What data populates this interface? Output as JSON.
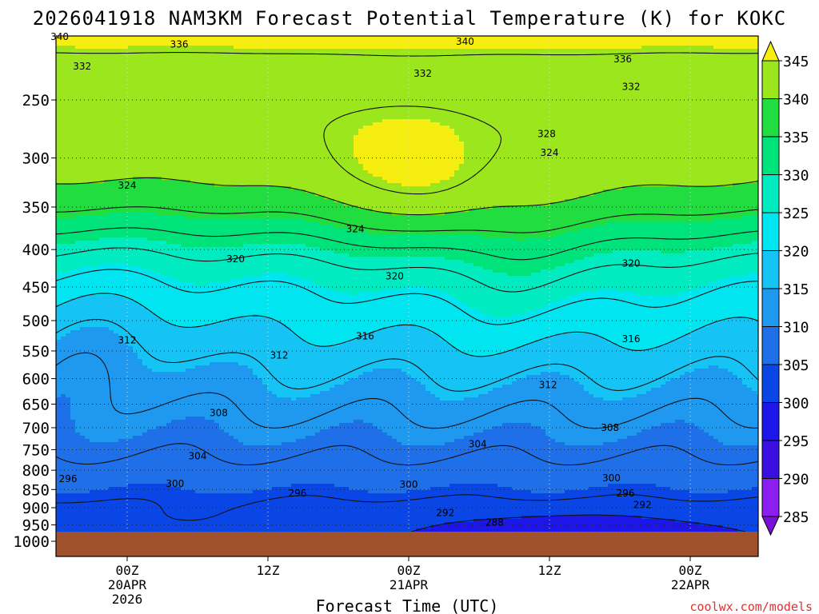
{
  "chart_data": {
    "type": "contour",
    "title": "2026041918 NAM3KM Forecast Potential Temperature (K) for KOKC",
    "xlabel": "Forecast Time (UTC)",
    "credit": "coolwx.com/models",
    "y_axis": {
      "unit": "hPa",
      "scale": "log-pressure",
      "range": [
        1000,
        200
      ],
      "ticks": [
        "250",
        "300",
        "350",
        "400",
        "450",
        "500",
        "550",
        "600",
        "650",
        "700",
        "750",
        "800",
        "850",
        "900",
        "950",
        "1000"
      ]
    },
    "x_axis": {
      "unit": "forecast hour",
      "range": [
        -6,
        44
      ],
      "ticks": [
        {
          "hour": 0,
          "lines": [
            "00Z",
            "20APR",
            "2026"
          ]
        },
        {
          "hour": 10,
          "lines": [
            "12Z"
          ]
        },
        {
          "hour": 20,
          "lines": [
            "00Z",
            "21APR"
          ]
        },
        {
          "hour": 30,
          "lines": [
            "12Z"
          ]
        },
        {
          "hour": 40,
          "lines": [
            "00Z",
            "22APR"
          ]
        }
      ]
    },
    "colorbar": {
      "labels": [
        "345",
        "340",
        "335",
        "330",
        "325",
        "320",
        "315",
        "310",
        "305",
        "300",
        "295",
        "290",
        "285"
      ],
      "bands": [
        {
          "lo": 280,
          "hi": 285,
          "color": "#7a10d8"
        },
        {
          "lo": 285,
          "hi": 290,
          "color": "#8c1ef0"
        },
        {
          "lo": 290,
          "hi": 295,
          "color": "#3a0fe0"
        },
        {
          "lo": 295,
          "hi": 300,
          "color": "#1c16e8"
        },
        {
          "lo": 300,
          "hi": 305,
          "color": "#0a46e6"
        },
        {
          "lo": 305,
          "hi": 310,
          "color": "#1f6fe8"
        },
        {
          "lo": 310,
          "hi": 315,
          "color": "#1f98f0"
        },
        {
          "lo": 315,
          "hi": 320,
          "color": "#16c3f5"
        },
        {
          "lo": 320,
          "hi": 325,
          "color": "#00e5f0"
        },
        {
          "lo": 325,
          "hi": 330,
          "color": "#00ecc0"
        },
        {
          "lo": 330,
          "hi": 335,
          "color": "#00e37a"
        },
        {
          "lo": 335,
          "hi": 340,
          "color": "#22dd40"
        },
        {
          "lo": 340,
          "hi": 345,
          "color": "#9ce61e"
        },
        {
          "lo": 345,
          "hi": 350,
          "color": "#f5ee10"
        }
      ]
    },
    "surface_color": "#a0522d",
    "contour_interval_K": 4,
    "contour_labels": [
      {
        "value": "340",
        "hour": -4.8,
        "p": 205
      },
      {
        "value": "336",
        "hour": 3.7,
        "p": 210
      },
      {
        "value": "340",
        "hour": 24.0,
        "p": 208
      },
      {
        "value": "332",
        "hour": -3.2,
        "p": 225
      },
      {
        "value": "332",
        "hour": 21.0,
        "p": 230
      },
      {
        "value": "336",
        "hour": 35.2,
        "p": 220
      },
      {
        "value": "332",
        "hour": 35.8,
        "p": 240
      },
      {
        "value": "328",
        "hour": 29.8,
        "p": 278
      },
      {
        "value": "324",
        "hour": 30.0,
        "p": 295
      },
      {
        "value": "324",
        "hour": 0.0,
        "p": 327
      },
      {
        "value": "324",
        "hour": 16.2,
        "p": 375
      },
      {
        "value": "320",
        "hour": 7.7,
        "p": 412
      },
      {
        "value": "320",
        "hour": 19.0,
        "p": 435
      },
      {
        "value": "320",
        "hour": 35.8,
        "p": 418
      },
      {
        "value": "316",
        "hour": 16.9,
        "p": 525
      },
      {
        "value": "316",
        "hour": 35.8,
        "p": 530
      },
      {
        "value": "312",
        "hour": 0.0,
        "p": 532
      },
      {
        "value": "312",
        "hour": 10.8,
        "p": 558
      },
      {
        "value": "312",
        "hour": 29.9,
        "p": 612
      },
      {
        "value": "308",
        "hour": 6.5,
        "p": 668
      },
      {
        "value": "308",
        "hour": 34.3,
        "p": 700
      },
      {
        "value": "304",
        "hour": 5.0,
        "p": 765
      },
      {
        "value": "304",
        "hour": 24.9,
        "p": 737
      },
      {
        "value": "300",
        "hour": 3.4,
        "p": 835
      },
      {
        "value": "300",
        "hour": 20.0,
        "p": 837
      },
      {
        "value": "300",
        "hour": 34.4,
        "p": 820
      },
      {
        "value": "296",
        "hour": -4.2,
        "p": 822
      },
      {
        "value": "296",
        "hour": 12.1,
        "p": 860
      },
      {
        "value": "296",
        "hour": 35.4,
        "p": 860
      },
      {
        "value": "292",
        "hour": 22.6,
        "p": 915
      },
      {
        "value": "292",
        "hour": 36.6,
        "p": 892
      },
      {
        "value": "288",
        "hour": 26.1,
        "p": 943
      }
    ]
  }
}
